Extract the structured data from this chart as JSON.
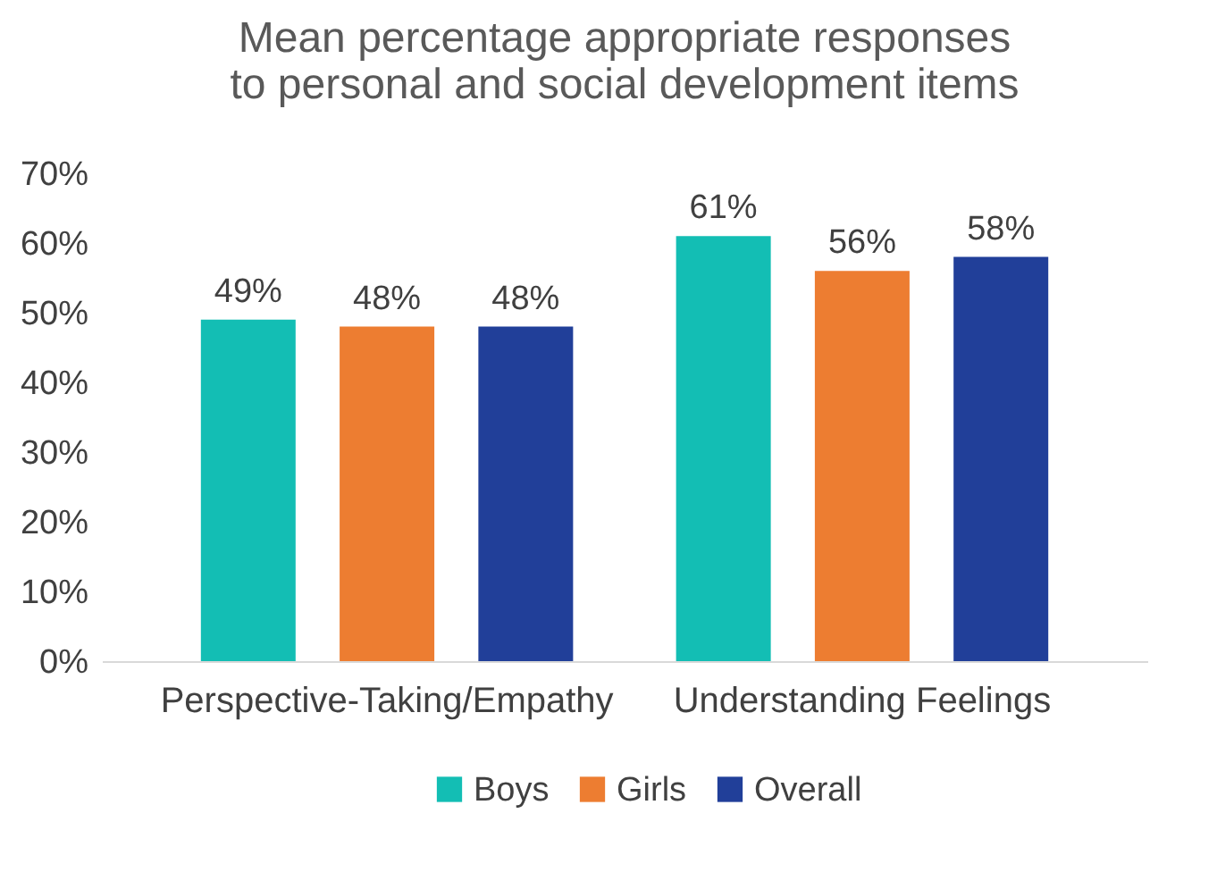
{
  "chart_data": {
    "type": "bar",
    "title": "Mean percentage appropriate responses to personal and social development items",
    "categories": [
      "Perspective-Taking/Empathy",
      "Understanding Feelings"
    ],
    "series": [
      {
        "name": "Boys",
        "color": "#13beb4",
        "values": [
          49,
          61
        ],
        "value_labels": [
          "49%",
          "61%"
        ]
      },
      {
        "name": "Girls",
        "color": "#ed7d31",
        "values": [
          48,
          56
        ],
        "value_labels": [
          "48%",
          "56%"
        ]
      },
      {
        "name": "Overall",
        "color": "#213f99",
        "values": [
          48,
          58
        ],
        "value_labels": [
          "48%",
          "58%"
        ]
      }
    ],
    "ylim": [
      0,
      70
    ],
    "yticks": [
      {
        "value": 0,
        "label": "0%"
      },
      {
        "value": 10,
        "label": "10%"
      },
      {
        "value": 20,
        "label": "20%"
      },
      {
        "value": 30,
        "label": "30%"
      },
      {
        "value": 40,
        "label": "40%"
      },
      {
        "value": 50,
        "label": "50%"
      },
      {
        "value": 60,
        "label": "60%"
      },
      {
        "value": 70,
        "label": "70%"
      }
    ],
    "grid": false,
    "legend": "bottom"
  }
}
